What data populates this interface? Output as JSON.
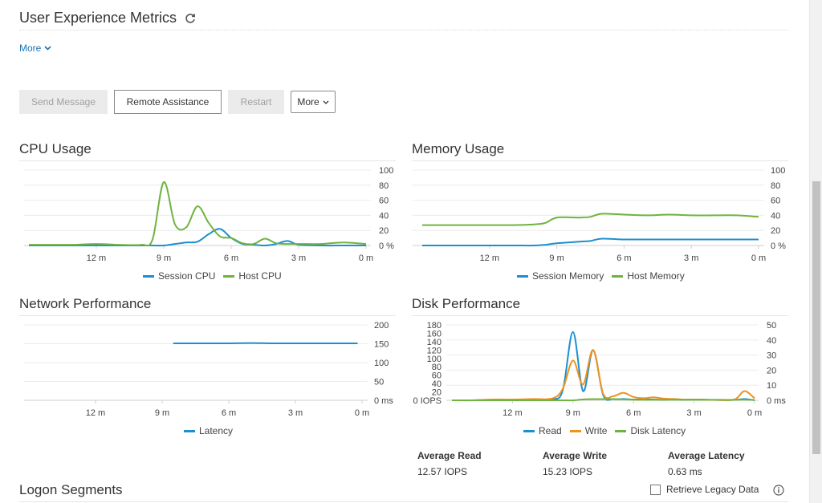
{
  "header": {
    "title": "User Experience Metrics",
    "more_link": "More"
  },
  "actions": {
    "send_message": "Send Message",
    "remote_assistance": "Remote Assistance",
    "restart": "Restart",
    "more": "More"
  },
  "colors": {
    "blue": "#1c8fd0",
    "green": "#6fb33f",
    "orange": "#f0921e",
    "link": "#1a73b5"
  },
  "time_ticks": [
    "12 m",
    "9 m",
    "6 m",
    "3 m",
    "0 m"
  ],
  "cpu": {
    "title": "CPU Usage",
    "y_ticks": [
      "100",
      "80",
      "60",
      "40",
      "20",
      "0 %"
    ],
    "legend": [
      "Session CPU",
      "Host CPU"
    ]
  },
  "memory": {
    "title": "Memory Usage",
    "y_ticks": [
      "100",
      "80",
      "60",
      "40",
      "20",
      "0 %"
    ],
    "legend": [
      "Session Memory",
      "Host Memory"
    ]
  },
  "network": {
    "title": "Network Performance",
    "y_ticks": [
      "200",
      "150",
      "100",
      "50",
      "0 ms"
    ],
    "legend": [
      "Latency"
    ]
  },
  "disk": {
    "title": "Disk Performance",
    "y_left_ticks": [
      "180",
      "160",
      "140",
      "120",
      "100",
      "80",
      "60",
      "40",
      "20",
      "0 IOPS"
    ],
    "y_right_ticks": [
      "50",
      "40",
      "30",
      "20",
      "10",
      "0 ms"
    ],
    "legend": [
      "Read",
      "Write",
      "Disk Latency"
    ],
    "stats": {
      "avg_read_label": "Average Read",
      "avg_read_value": "12.57 IOPS",
      "avg_write_label": "Average Write",
      "avg_write_value": "15.23 IOPS",
      "avg_latency_label": "Average Latency",
      "avg_latency_value": "0.63 ms"
    }
  },
  "footer": {
    "retrieve_legacy": "Retrieve Legacy Data",
    "logon_segments": "Logon Segments"
  },
  "chart_data": [
    {
      "type": "line",
      "title": "CPU Usage",
      "x": [
        15,
        14,
        13,
        12,
        11,
        10,
        9.5,
        9,
        8.5,
        8,
        7.5,
        7,
        6.5,
        6,
        5.5,
        5,
        4.5,
        4,
        3.5,
        3,
        2,
        1,
        0
      ],
      "x_unit": "m",
      "ylim": [
        0,
        100
      ],
      "y_unit": "%",
      "series": [
        {
          "name": "Session CPU",
          "values": [
            0,
            0,
            0,
            0,
            0,
            0,
            0,
            0,
            2,
            4,
            5,
            15,
            22,
            10,
            2,
            1,
            0,
            2,
            6,
            1,
            0,
            0,
            0
          ]
        },
        {
          "name": "Host CPU",
          "values": [
            1,
            1,
            1,
            2,
            1,
            1,
            8,
            84,
            28,
            24,
            52,
            30,
            12,
            10,
            3,
            2,
            9,
            3,
            2,
            2,
            2,
            4,
            2
          ]
        }
      ]
    },
    {
      "type": "line",
      "title": "Memory Usage",
      "x": [
        15,
        13,
        11,
        10,
        9.5,
        9,
        8,
        7.5,
        7,
        6,
        5,
        4,
        3,
        2,
        1,
        0
      ],
      "x_unit": "m",
      "ylim": [
        0,
        100
      ],
      "y_unit": "%",
      "series": [
        {
          "name": "Session Memory",
          "values": [
            0,
            0,
            0,
            0,
            1,
            3,
            5,
            6,
            9,
            8,
            8,
            8,
            8,
            8,
            8,
            8
          ]
        },
        {
          "name": "Host Memory",
          "values": [
            27,
            27,
            27,
            28,
            30,
            37,
            37,
            38,
            42,
            41,
            40,
            41,
            40,
            40,
            40,
            38
          ]
        }
      ]
    },
    {
      "type": "line",
      "title": "Network Performance",
      "x": [
        8.5,
        8,
        7,
        6,
        5,
        4,
        3,
        2,
        1,
        0.2
      ],
      "x_unit": "m",
      "ylim": [
        0,
        200
      ],
      "y_unit": "ms",
      "series": [
        {
          "name": "Latency",
          "values": [
            151,
            151,
            151,
            151,
            152,
            151,
            151,
            151,
            151,
            151
          ]
        }
      ]
    },
    {
      "type": "line",
      "title": "Disk Performance",
      "x": [
        15,
        14,
        13,
        12,
        11,
        10,
        9.5,
        9,
        8.5,
        8,
        7.5,
        7,
        6.5,
        6,
        5.5,
        5,
        4.5,
        4,
        3.5,
        3,
        2,
        1,
        0.5,
        0
      ],
      "x_unit": "m",
      "ylim_left": [
        0,
        180
      ],
      "ylim_right": [
        0,
        50
      ],
      "left_unit": "IOPS",
      "right_unit": "ms",
      "series": [
        {
          "name": "Read",
          "axis": "left",
          "values": [
            0,
            0,
            1,
            2,
            1,
            2,
            25,
            163,
            22,
            120,
            12,
            3,
            3,
            2,
            2,
            2,
            1,
            3,
            1,
            2,
            1,
            1,
            3,
            0
          ]
        },
        {
          "name": "Write",
          "axis": "left",
          "values": [
            0,
            0,
            2,
            2,
            3,
            5,
            28,
            95,
            38,
            120,
            15,
            10,
            18,
            8,
            5,
            7,
            4,
            3,
            2,
            2,
            1,
            2,
            22,
            5
          ]
        },
        {
          "name": "Disk Latency",
          "axis": "right",
          "values": [
            0,
            0,
            0,
            0,
            0,
            0,
            0,
            0,
            0.6,
            0.8,
            0.8,
            0.8,
            0.6,
            0.4,
            0.3,
            0.3,
            0.3,
            0.3,
            0.3,
            0.3,
            0.3,
            0.3,
            0.4,
            0.3
          ]
        }
      ]
    }
  ]
}
